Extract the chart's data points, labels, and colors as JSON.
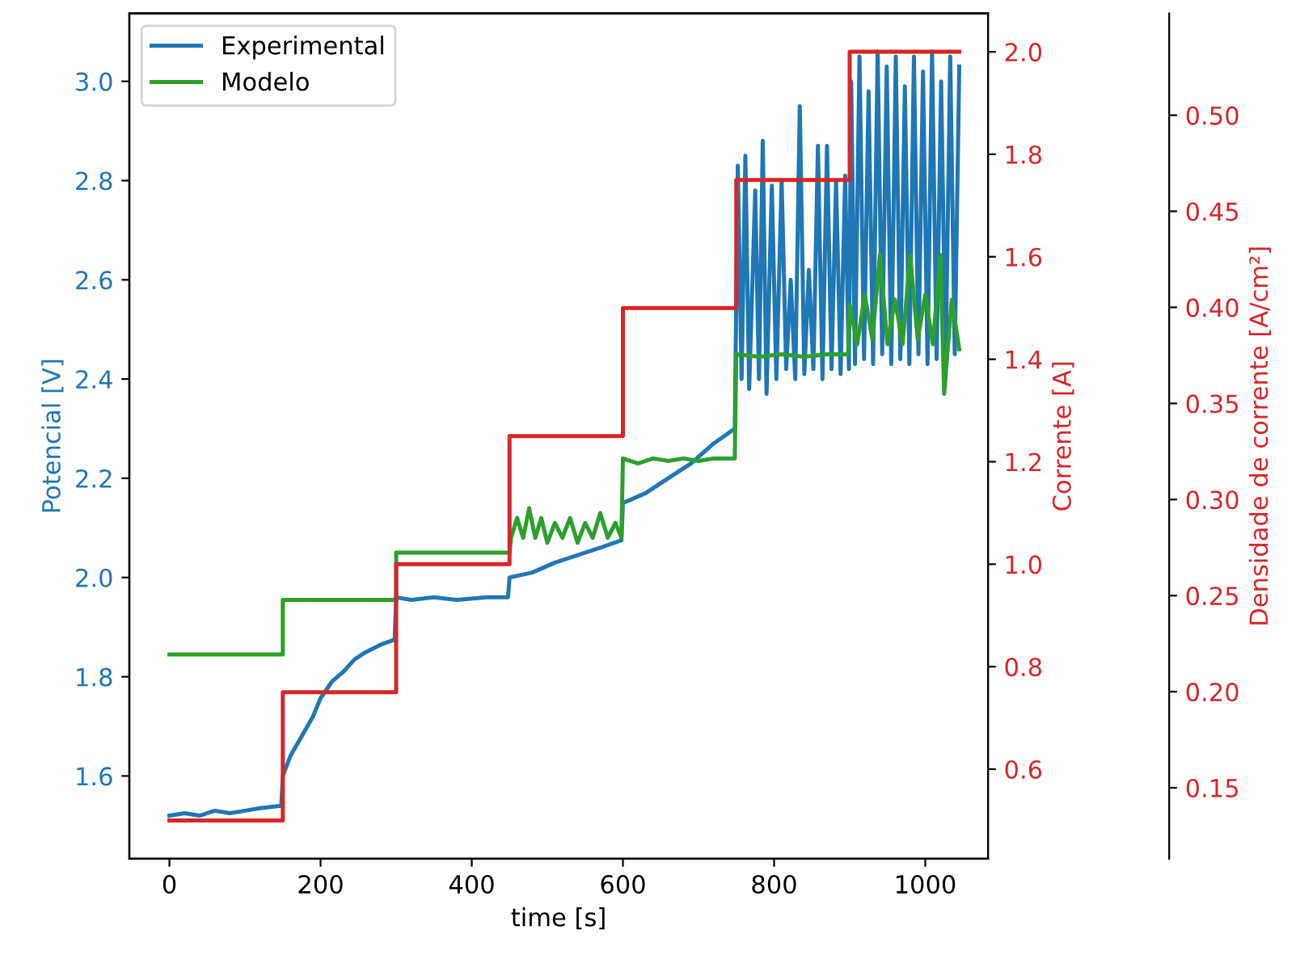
{
  "chart_data": {
    "type": "line",
    "xlabel": "time [s]",
    "ylabel": "Potencial [V]",
    "y2label": "Corrente [A]",
    "y3label": "Densidade de corrente [A/cm²]",
    "xlim": [
      -53,
      1083
    ],
    "xticks": [
      0,
      200,
      400,
      600,
      800,
      1000
    ],
    "ylim": [
      1.433,
      3.137
    ],
    "yticks": [
      1.6,
      1.8,
      {
        "value": 2,
        "label": "2.0"
      },
      2.2,
      2.4,
      2.6,
      2.8,
      {
        "value": 3,
        "label": "3.0"
      }
    ],
    "y2lim": [
      0.425,
      2.075
    ],
    "y2ticks": [
      0.6,
      0.8,
      {
        "value": 1,
        "label": "1.0"
      },
      1.2,
      1.4,
      1.6,
      1.8,
      {
        "value": 2,
        "label": "2.0"
      }
    ],
    "y3lim": [
      0.113,
      0.553
    ],
    "y3ticks": [
      0.15,
      {
        "value": 0.2,
        "label": "0.20"
      },
      0.25,
      {
        "value": 0.3,
        "label": "0.30"
      },
      0.35,
      {
        "value": 0.4,
        "label": "0.40"
      },
      0.45,
      {
        "value": 0.5,
        "label": "0.50"
      }
    ],
    "legend": "top left",
    "series": [
      {
        "name": "Experimental",
        "color": "#1f77b4",
        "x": [
          0,
          20,
          40,
          60,
          80,
          100,
          120,
          148,
          150,
          160,
          175,
          190,
          200,
          215,
          230,
          245,
          260,
          280,
          298,
          300,
          320,
          350,
          380,
          420,
          448,
          450,
          480,
          510,
          540,
          570,
          598,
          600,
          630,
          660,
          690,
          720,
          748,
          752,
          757,
          762,
          767,
          775,
          780,
          785,
          790,
          797,
          803,
          810,
          816,
          822,
          828,
          834,
          840,
          846,
          852,
          858,
          864,
          870,
          876,
          882,
          888,
          894,
          899,
          902,
          907,
          913,
          919,
          925,
          931,
          937,
          943,
          949,
          955,
          961,
          967,
          973,
          979,
          985,
          991,
          997,
          1003,
          1009,
          1015,
          1021,
          1027,
          1033,
          1039,
          1045
        ],
        "values": [
          1.52,
          1.525,
          1.52,
          1.53,
          1.525,
          1.53,
          1.535,
          1.54,
          1.6,
          1.64,
          1.68,
          1.72,
          1.757,
          1.79,
          1.81,
          1.835,
          1.85,
          1.865,
          1.875,
          1.96,
          1.955,
          1.96,
          1.955,
          1.96,
          1.96,
          2.0,
          2.01,
          2.03,
          2.045,
          2.06,
          2.075,
          2.15,
          2.17,
          2.2,
          2.23,
          2.27,
          2.3,
          2.83,
          2.4,
          2.85,
          2.38,
          2.78,
          2.4,
          2.88,
          2.37,
          2.79,
          2.4,
          2.8,
          2.42,
          2.6,
          2.4,
          2.95,
          2.41,
          2.62,
          2.42,
          2.87,
          2.4,
          2.87,
          2.42,
          2.8,
          2.41,
          2.81,
          2.42,
          3.0,
          2.43,
          3.05,
          2.44,
          2.98,
          2.43,
          3.06,
          2.45,
          3.03,
          2.43,
          3.05,
          2.44,
          2.99,
          2.43,
          3.05,
          2.45,
          3.02,
          2.43,
          3.06,
          2.44,
          3.0,
          2.43,
          3.05,
          2.45,
          3.03
        ]
      },
      {
        "name": "Modelo",
        "color": "#2ca02c",
        "x": [
          0,
          150,
          150,
          300,
          300,
          450,
          452,
          460,
          468,
          476,
          484,
          492,
          500,
          510,
          520,
          530,
          540,
          550,
          560,
          570,
          580,
          590,
          598,
          600,
          620,
          640,
          660,
          680,
          700,
          720,
          748,
          750,
          780,
          810,
          840,
          870,
          898,
          900,
          910,
          920,
          930,
          940,
          950,
          960,
          970,
          980,
          990,
          1000,
          1010,
          1020,
          1025,
          1035,
          1045
        ],
        "values": [
          1.845,
          1.845,
          1.955,
          1.955,
          2.05,
          2.05,
          2.08,
          2.12,
          2.08,
          2.14,
          2.08,
          2.12,
          2.07,
          2.11,
          2.08,
          2.12,
          2.07,
          2.11,
          2.08,
          2.13,
          2.08,
          2.11,
          2.08,
          2.24,
          2.23,
          2.24,
          2.235,
          2.24,
          2.235,
          2.24,
          2.24,
          2.45,
          2.445,
          2.45,
          2.445,
          2.45,
          2.45,
          2.55,
          2.47,
          2.57,
          2.48,
          2.65,
          2.47,
          2.56,
          2.47,
          2.65,
          2.48,
          2.57,
          2.47,
          2.65,
          2.37,
          2.56,
          2.46
        ]
      },
      {
        "type": "step",
        "axis": "y2",
        "color": "#d62728",
        "x": [
          0,
          150,
          300,
          450,
          600,
          750,
          900,
          1045
        ],
        "values": [
          0.5,
          0.75,
          1.0,
          1.25,
          1.5,
          1.75,
          2.0,
          2.0
        ]
      }
    ]
  }
}
